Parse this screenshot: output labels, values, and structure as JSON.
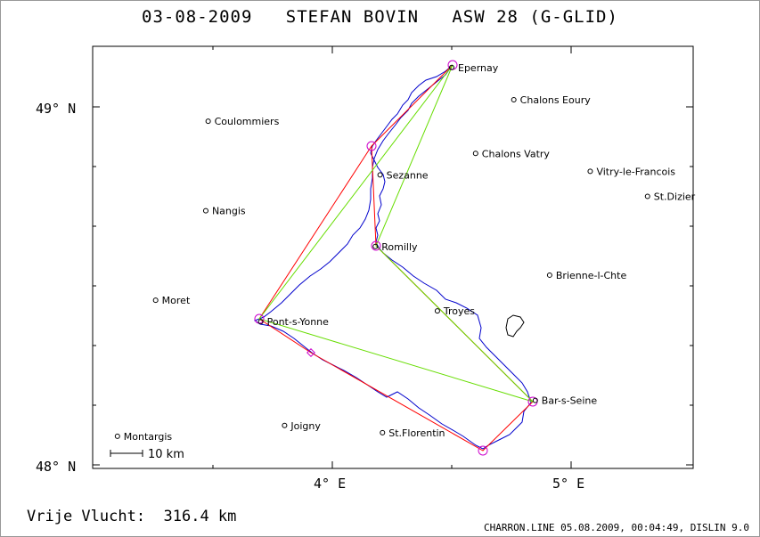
{
  "title": "03-08-2009   STEFAN BOVIN   ASW 28 (G-GLID)",
  "distance_label": "Vrije Vlucht:  316.4 km",
  "footer": "CHARRON.LINE 05.08.2009, 00:04:49, DISLIN 9.0",
  "scale_label": "10 km",
  "axes": {
    "lat_labels": [
      "49° N",
      "48° N"
    ],
    "lon_labels": [
      "4° E",
      "5° E"
    ]
  },
  "colors": {
    "track": "#0000cc",
    "task": "#ff0000",
    "legs": "#66dd00",
    "turnpoint": "#cc00cc",
    "optimized": "#ff8800"
  },
  "towns": [
    {
      "name": "Epernay",
      "lon": 4.5,
      "lat": 49.11
    },
    {
      "name": "Chalons Eoury",
      "lon": 4.76,
      "lat": 49.02
    },
    {
      "name": "Coulommiers",
      "lon": 3.48,
      "lat": 48.96
    },
    {
      "name": "Chalons Vatry",
      "lon": 4.6,
      "lat": 48.87
    },
    {
      "name": "Sezanne",
      "lon": 4.2,
      "lat": 48.81
    },
    {
      "name": "Vitry-le-Francois",
      "lon": 5.08,
      "lat": 48.82
    },
    {
      "name": "St.Dizier",
      "lon": 5.32,
      "lat": 48.75
    },
    {
      "name": "Nangis",
      "lon": 3.47,
      "lat": 48.71
    },
    {
      "name": "Romilly",
      "lon": 4.18,
      "lat": 48.61
    },
    {
      "name": "Brienne-l-Chte",
      "lon": 4.91,
      "lat": 48.53
    },
    {
      "name": "Moret",
      "lon": 3.26,
      "lat": 48.46
    },
    {
      "name": "Troyes",
      "lon": 4.44,
      "lat": 48.43
    },
    {
      "name": "Pont-s-Yonne",
      "lon": 3.7,
      "lat": 48.4
    },
    {
      "name": "Bar-s-Seine",
      "lon": 4.85,
      "lat": 48.18
    },
    {
      "name": "Joigny",
      "lon": 3.8,
      "lat": 48.11
    },
    {
      "name": "St.Florentin",
      "lon": 4.21,
      "lat": 48.09
    },
    {
      "name": "Montargis",
      "lon": 3.1,
      "lat": 48.08
    }
  ]
}
